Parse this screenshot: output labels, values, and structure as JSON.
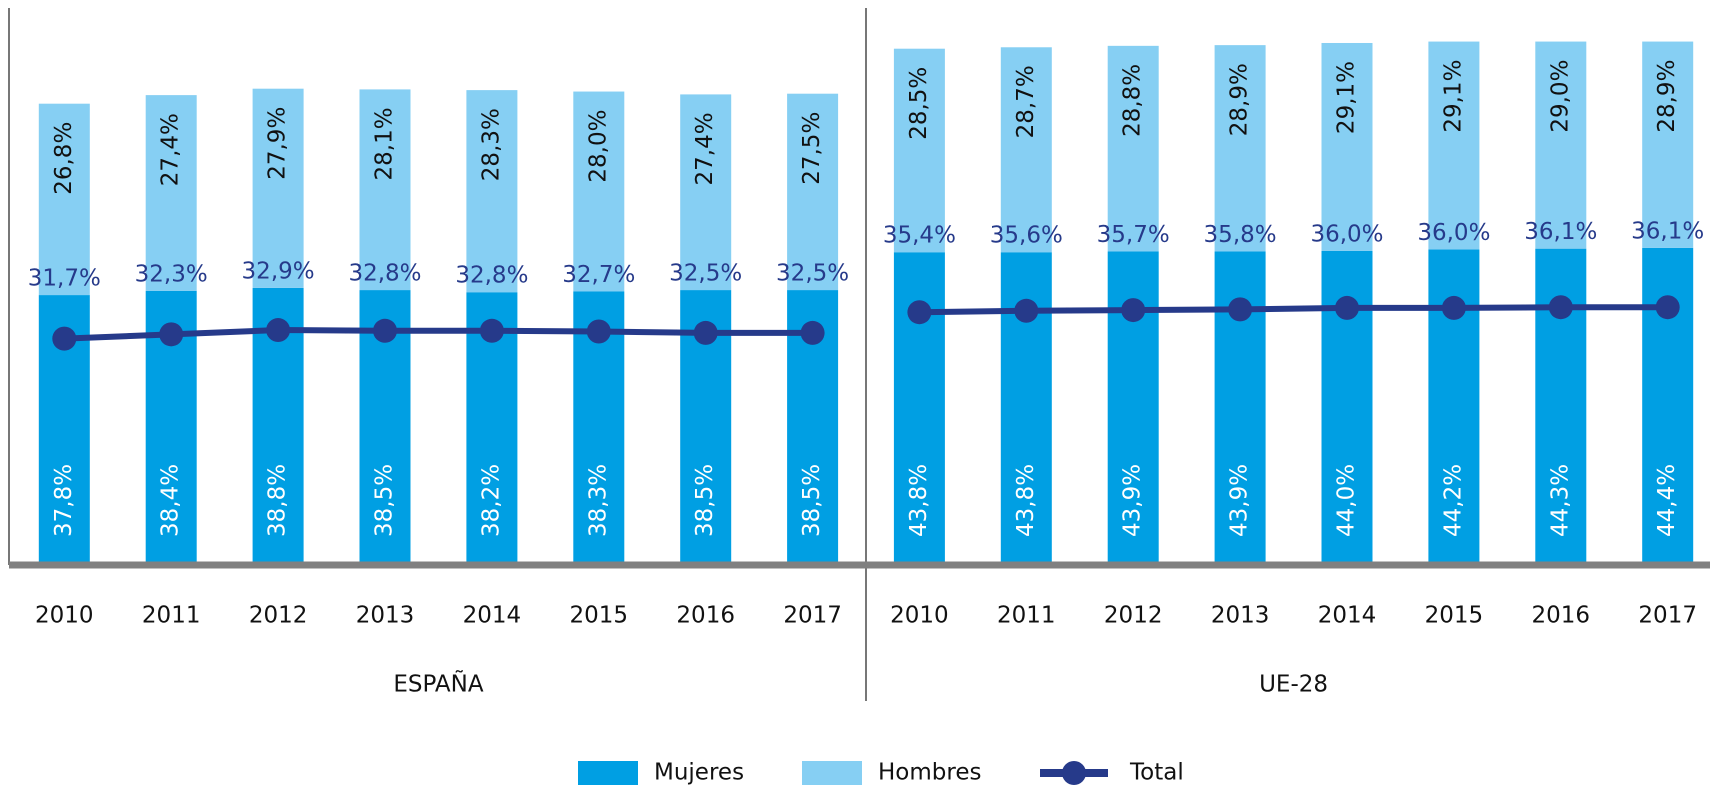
{
  "chart_data": [
    {
      "type": "bar",
      "stacked": true,
      "label": "ESPAÑA",
      "categories": [
        "2010",
        "2011",
        "2012",
        "2013",
        "2014",
        "2015",
        "2016",
        "2017"
      ],
      "ylim": [
        0,
        78
      ],
      "series": [
        {
          "name": "Mujeres",
          "color": "#009fe3",
          "values": [
            37.8,
            38.4,
            38.8,
            38.5,
            38.2,
            38.3,
            38.5,
            38.5
          ],
          "value_labels": [
            "37,8%",
            "38,4%",
            "38,8%",
            "38,5%",
            "38,2%",
            "38,3%",
            "38,5%",
            "38,5%"
          ]
        },
        {
          "name": "Hombres",
          "color": "#86cff3",
          "values": [
            26.8,
            27.4,
            27.9,
            28.1,
            28.3,
            28.0,
            27.4,
            27.5
          ],
          "value_labels": [
            "26,8%",
            "27,4%",
            "27,9%",
            "28,1%",
            "28,3%",
            "28,0%",
            "27,4%",
            "27,5%"
          ]
        },
        {
          "name": "Total",
          "type": "line",
          "color": "#263a8a",
          "values": [
            31.7,
            32.3,
            32.9,
            32.8,
            32.8,
            32.7,
            32.5,
            32.5
          ],
          "value_labels": [
            "31,7%",
            "32,3%",
            "32,9%",
            "32,8%",
            "32,8%",
            "32,7%",
            "32,5%",
            "32,5%"
          ]
        }
      ]
    },
    {
      "type": "bar",
      "stacked": true,
      "label": "UE-28",
      "categories": [
        "2010",
        "2011",
        "2012",
        "2013",
        "2014",
        "2015",
        "2016",
        "2017"
      ],
      "ylim": [
        0,
        78
      ],
      "series": [
        {
          "name": "Mujeres",
          "color": "#009fe3",
          "values": [
            43.8,
            43.8,
            43.9,
            43.9,
            44.0,
            44.2,
            44.3,
            44.4
          ],
          "value_labels": [
            "43,8%",
            "43,8%",
            "43,9%",
            "43,9%",
            "44,0%",
            "44,2%",
            "44,3%",
            "44,4%"
          ]
        },
        {
          "name": "Hombres",
          "color": "#86cff3",
          "values": [
            28.5,
            28.7,
            28.8,
            28.9,
            29.1,
            29.1,
            29.0,
            28.9
          ],
          "value_labels": [
            "28,5%",
            "28,7%",
            "28,8%",
            "28,9%",
            "29,1%",
            "29,1%",
            "29,0%",
            "28,9%"
          ]
        },
        {
          "name": "Total",
          "type": "line",
          "color": "#263a8a",
          "values": [
            35.4,
            35.6,
            35.7,
            35.8,
            36.0,
            36.0,
            36.1,
            36.1
          ],
          "value_labels": [
            "35,4%",
            "35,6%",
            "35,7%",
            "35,8%",
            "36,0%",
            "36,0%",
            "36,1%",
            "36,1%"
          ]
        }
      ]
    }
  ]
}
